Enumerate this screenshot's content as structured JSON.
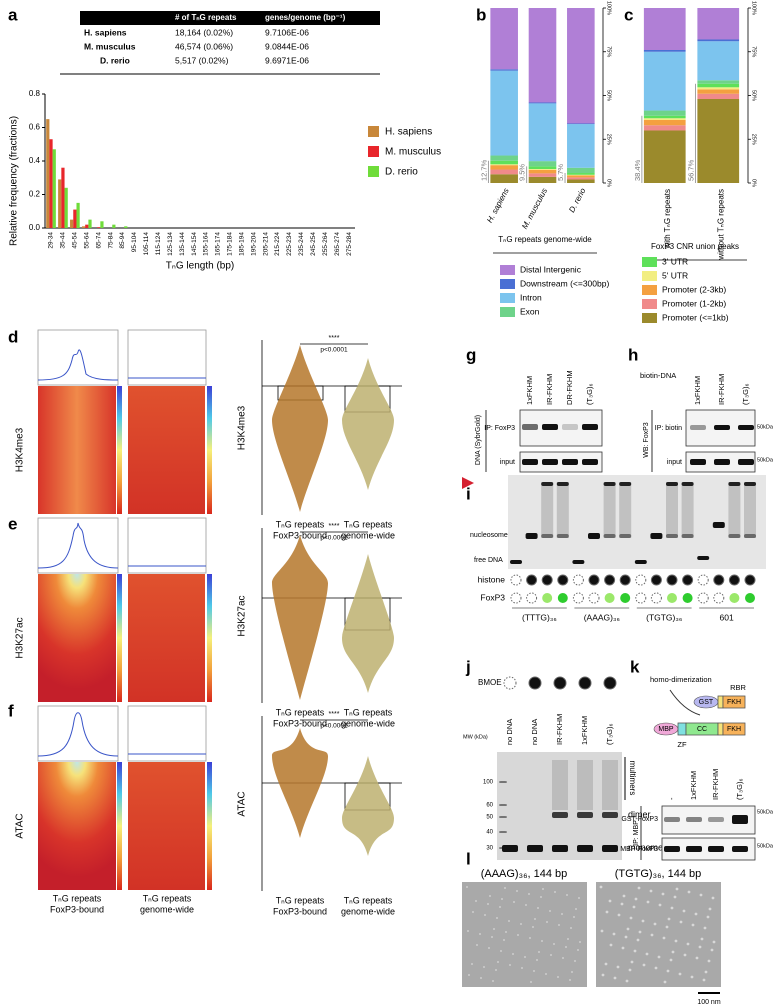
{
  "panel_letters": [
    "a",
    "b",
    "c",
    "d",
    "e",
    "f",
    "g",
    "h",
    "i",
    "j",
    "k",
    "l"
  ],
  "table": {
    "header": [
      "# of TₙG repeats",
      "genes/genome (bp⁻¹)"
    ],
    "rows": [
      [
        "H. sapiens",
        "18,164 (0.02%)",
        "9.7106E-06"
      ],
      [
        "M. musculus",
        "46,574 (0.06%)",
        "9.0844E-06"
      ],
      [
        "D. rerio",
        "5,517 (0.02%)",
        "9.6971E-06"
      ]
    ]
  },
  "chart_data": [
    {
      "type": "bar",
      "y_label": "Relative frequency (fractions)",
      "x_label": "TₙG length (bp)",
      "categories": [
        "29-34",
        "35-44",
        "45-54",
        "55-64",
        "65-74",
        "75-84",
        "85-94",
        "95-104",
        "105-114",
        "115-124",
        "125-134",
        "135-144",
        "145-154",
        "155-164",
        "165-174",
        "175-184",
        "185-194",
        "195-204",
        "205-214",
        "215-224",
        "225-234",
        "235-244",
        "245-254",
        "255-264",
        "265-274",
        "275-284"
      ],
      "series": [
        {
          "name": "H. sapiens",
          "color": "#c8873a",
          "values": [
            0.65,
            0.29,
            0.05,
            0.01,
            0,
            0,
            0,
            0,
            0,
            0,
            0,
            0,
            0,
            0,
            0,
            0,
            0,
            0,
            0,
            0,
            0,
            0,
            0,
            0,
            0,
            0
          ]
        },
        {
          "name": "M. musculus",
          "color": "#e8262b",
          "values": [
            0.53,
            0.36,
            0.11,
            0.02,
            0.005,
            0,
            0,
            0,
            0,
            0,
            0,
            0,
            0,
            0,
            0,
            0,
            0,
            0,
            0,
            0,
            0,
            0,
            0,
            0,
            0,
            0
          ]
        },
        {
          "name": "D. rerio",
          "color": "#6fdc3a",
          "values": [
            0.47,
            0.24,
            0.15,
            0.05,
            0.04,
            0.02,
            0.01,
            0,
            0,
            0,
            0,
            0,
            0,
            0,
            0,
            0,
            0,
            0,
            0,
            0,
            0,
            0,
            0,
            0,
            0,
            0
          ]
        }
      ],
      "ylim": [
        0,
        0.8
      ],
      "yticks": [
        {
          "value": 0,
          "label": "0.0"
        },
        0.2,
        0.4,
        0.6,
        0.8
      ],
      "legend": "right"
    },
    {
      "type": "stacked_bar",
      "x_label": "TₙG repeats genome-wide",
      "categories": [
        "H. sapiens",
        "M. musculus",
        "D. rerio"
      ],
      "series": [
        {
          "color": "#9b8a2c",
          "values": [
            5.0,
            3.5,
            2.0
          ]
        },
        {
          "color": "#f08a8a",
          "values": [
            2.7,
            2.0,
            1.2
          ]
        },
        {
          "color": "#f4a040",
          "values": [
            2.5,
            2.0,
            1.2
          ]
        },
        {
          "color": "#f2ee82",
          "values": [
            0.5,
            0.5,
            0.3
          ]
        },
        {
          "color": "#5ee05a",
          "values": [
            2.0,
            1.5,
            1.0
          ]
        },
        {
          "name": "Exon",
          "color": "#6ed38a",
          "values": [
            3,
            3,
            3
          ]
        },
        {
          "name": "Intron",
          "color": "#7cc4ee",
          "values": [
            48.5,
            33,
            25
          ]
        },
        {
          "name": "Downstream (<=300bp)",
          "color": "#4a6fd4",
          "values": [
            0.8,
            0.5,
            0.3
          ]
        },
        {
          "name": "Distal Intergenic",
          "color": "#b07fd6",
          "values": [
            35,
            54,
            66
          ]
        }
      ],
      "annotations": [
        "12.7%",
        "9.5%",
        "5.7%"
      ],
      "ylim": [
        0,
        100
      ],
      "yticks": [
        {
          "value": 0,
          "label": "0%"
        },
        {
          "value": 25,
          "label": "25%"
        },
        {
          "value": 50,
          "label": "50%"
        },
        {
          "value": 75,
          "label": "75%"
        },
        {
          "value": 100,
          "label": "100%"
        }
      ],
      "legend": "bottom"
    },
    {
      "type": "stacked_bar",
      "x_label": "FoxP3 CNR union peaks",
      "categories": [
        "with TₙG repeats",
        "without TₙG repeats"
      ],
      "series": [
        {
          "name": "Promoter (<=1kb)",
          "color": "#9b8a2c",
          "values": [
            30,
            48
          ]
        },
        {
          "name": "Promoter (1-2kb)",
          "color": "#f08a8a",
          "values": [
            3,
            3
          ]
        },
        {
          "name": "Promoter (2-3kb)",
          "color": "#f4a040",
          "values": [
            3,
            2.5
          ]
        },
        {
          "name": "5' UTR",
          "color": "#f2ee82",
          "values": [
            1,
            1.2
          ]
        },
        {
          "name": "3' UTR",
          "color": "#5ee05a",
          "values": [
            1.4,
            2
          ]
        },
        {
          "color": "#6ed38a",
          "values": [
            3,
            2
          ]
        },
        {
          "color": "#7cc4ee",
          "values": [
            33.6,
            22.3
          ]
        },
        {
          "color": "#4a6fd4",
          "values": [
            1,
            1
          ]
        },
        {
          "color": "#b07fd6",
          "values": [
            24,
            18
          ]
        }
      ],
      "annotations": [
        "38.4%",
        "56.7%"
      ],
      "ylim": [
        0,
        100
      ],
      "yticks": [
        {
          "value": 0,
          "label": "0%"
        },
        {
          "value": 25,
          "label": "25%"
        },
        {
          "value": 50,
          "label": "50%"
        },
        {
          "value": 75,
          "label": "75%"
        },
        {
          "value": 100,
          "label": "100%"
        }
      ],
      "legend": "bottom"
    }
  ],
  "profiles": {
    "columns": [
      [
        "TₙG repeats",
        "FoxP3-bound"
      ],
      [
        "TₙG repeats",
        "genome-wide"
      ]
    ],
    "rows": [
      {
        "mark": "H3K4me3",
        "significance": "****",
        "p_value": "p<0.0001"
      },
      {
        "mark": "H3K27ac",
        "significance": "****",
        "p_value": "p<0.0001"
      },
      {
        "mark": "ATAC",
        "significance": "****",
        "p_value": "p<0.0001"
      }
    ]
  },
  "g": {
    "columns": [
      "1xFKHM",
      "IR-FKHM",
      "DR-FKHM",
      "(T₃G)₆"
    ],
    "y_label": "DNA (SybrGold)",
    "rows": [
      "IP: FoxP3",
      "input"
    ]
  },
  "h": {
    "header": "biotin-DNA",
    "columns": [
      "1xFKHM",
      "IR-FKHM",
      "(T₃G)₆"
    ],
    "y_label": "WB: FoxP3",
    "rows": [
      "IP: biotin",
      "input"
    ],
    "marker": "50kDa"
  },
  "i": {
    "band_labels": [
      "nucleosome",
      "free DNA"
    ],
    "row_labels": [
      "histone",
      "FoxP3"
    ],
    "groups": [
      "(TTTG)₃₆",
      "(AAAG)₃₆",
      "(TGTG)₃₆",
      "601"
    ]
  },
  "j": {
    "treatment": "BMOE",
    "columns": [
      "no DNA",
      "no DNA",
      "IR-FKHM",
      "1xFKHM",
      "(T₃G)₆"
    ],
    "mw_label": "MW (kDa)",
    "mw_ticks": [
      "100",
      "60",
      "50",
      "40",
      "30"
    ],
    "species": [
      "multimers",
      "dimer",
      "monomer"
    ]
  },
  "k": {
    "dimerization": "homo-dimerization",
    "rbr": "RBR",
    "gst": "GST",
    "fkh": "FKH",
    "mbp": "MBP",
    "cc": "CC",
    "zf": "ZF",
    "columns": [
      "-",
      "1xFKHM",
      "IR-FKHM",
      "(T₃G)₆"
    ],
    "rows": [
      "GST-FoxP3",
      "MBP-FoxP3"
    ],
    "ip": "IP: MBP",
    "marker": "50kDa"
  },
  "l": {
    "images": [
      "(AAAG)₃₆, 144 bp",
      "(TGTG)₃₆, 144 bp"
    ],
    "scale_bar": "100 nm"
  }
}
